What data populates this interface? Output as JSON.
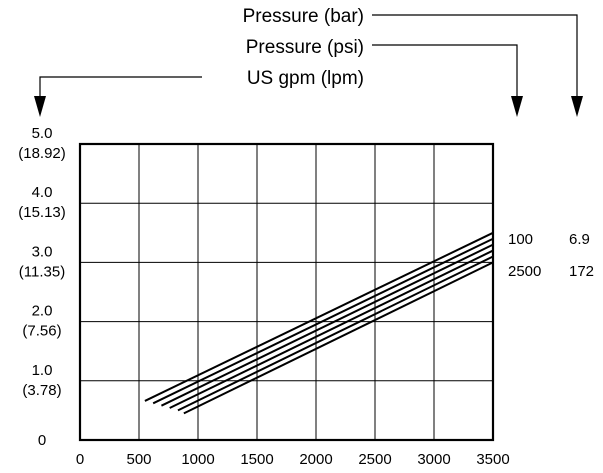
{
  "chart_data": {
    "type": "line",
    "legend_labels": [
      "Pressure (bar)",
      "Pressure (psi)",
      "US gpm (lpm)"
    ],
    "x_ticks": [
      "0",
      "500",
      "1000",
      "1500",
      "2000",
      "2500",
      "3000",
      "3500"
    ],
    "y_ticks": [
      {
        "value": "5.0",
        "lpm": "(18.92)"
      },
      {
        "value": "4.0",
        "lpm": "(15.13)"
      },
      {
        "value": "3.0",
        "lpm": "(11.35)"
      },
      {
        "value": "2.0",
        "lpm": "(7.56)"
      },
      {
        "value": "1.0",
        "lpm": "(3.78)"
      },
      {
        "value": "0",
        "lpm": ""
      }
    ],
    "xlim": [
      0,
      3500
    ],
    "ylim": [
      0,
      5
    ],
    "grid": true,
    "series_labels": [
      {
        "psi": "100",
        "bar": "6.9"
      },
      {
        "psi": "2500",
        "bar": "172"
      }
    ],
    "series": [
      {
        "x": [
          550,
          3500
        ],
        "y": [
          0.66,
          3.5
        ]
      },
      {
        "x": [
          620,
          3500
        ],
        "y": [
          0.62,
          3.4
        ]
      },
      {
        "x": [
          690,
          3500
        ],
        "y": [
          0.58,
          3.3
        ]
      },
      {
        "x": [
          760,
          3500
        ],
        "y": [
          0.54,
          3.2
        ]
      },
      {
        "x": [
          830,
          3500
        ],
        "y": [
          0.5,
          3.1
        ]
      },
      {
        "x": [
          880,
          3500
        ],
        "y": [
          0.45,
          3.0
        ]
      }
    ],
    "colors": {
      "line": "#000000",
      "background": "#ffffff"
    }
  }
}
